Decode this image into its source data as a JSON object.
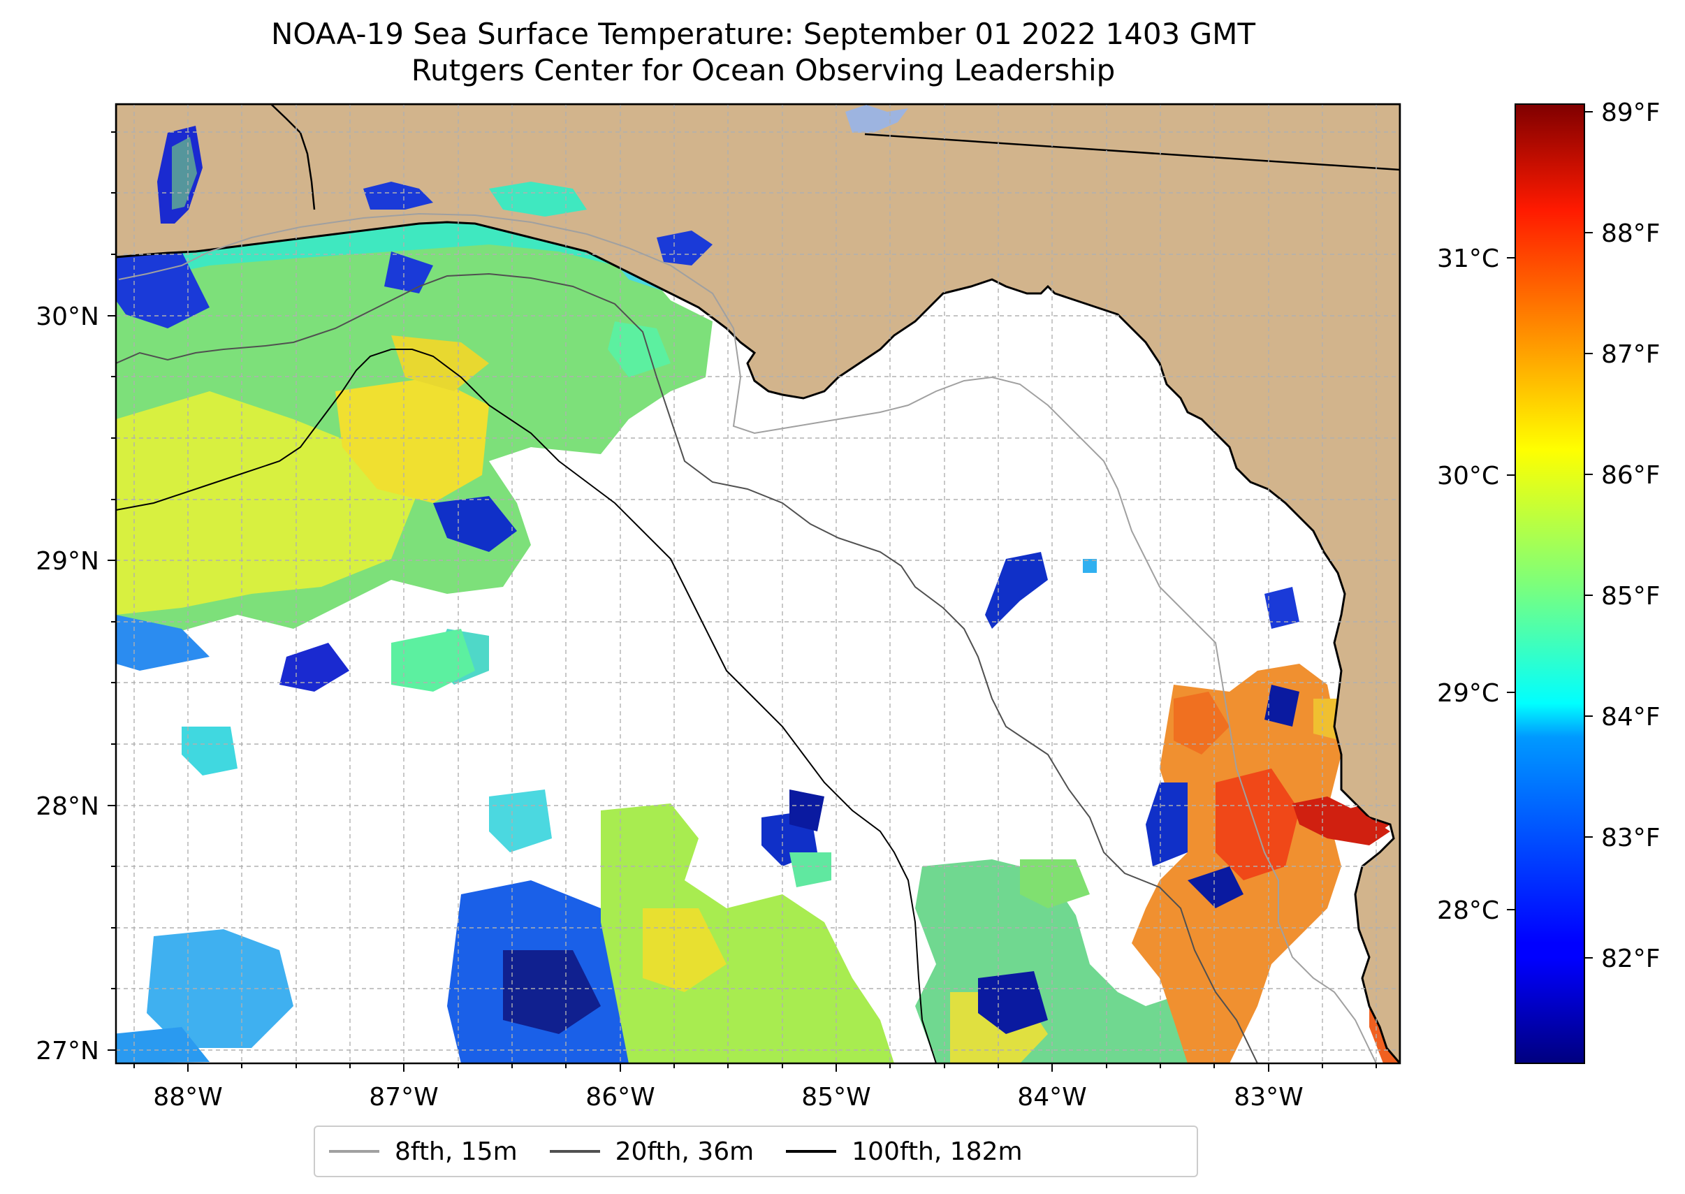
{
  "title": {
    "line1": "NOAA-19 Sea Surface Temperature: September 01 2022 1403 GMT",
    "line2": "Rutgers Center for Ocean Observing Leadership"
  },
  "map": {
    "lon_labels": [
      "88°W",
      "87°W",
      "86°W",
      "85°W",
      "84°W",
      "83°W"
    ],
    "lat_labels": [
      "30°N",
      "29°N",
      "28°N",
      "27°N"
    ],
    "colors": {
      "land": "#d2b48c",
      "coast": "#000000",
      "grid": "#b0b0b0",
      "lake": "#9db4e0"
    }
  },
  "colorbar": {
    "colormap": "jet",
    "celsius_labels": [
      "31°C",
      "30°C",
      "29°C",
      "28°C"
    ],
    "fahrenheit_labels": [
      "89°F",
      "88°F",
      "87°F",
      "86°F",
      "85°F",
      "84°F",
      "83°F",
      "82°F"
    ]
  },
  "legend": {
    "items": [
      {
        "label": "8fth, 15m",
        "color": "#a0a0a0"
      },
      {
        "label": "20fth, 36m",
        "color": "#505050"
      },
      {
        "label": "100fth, 182m",
        "color": "#000000"
      }
    ]
  }
}
